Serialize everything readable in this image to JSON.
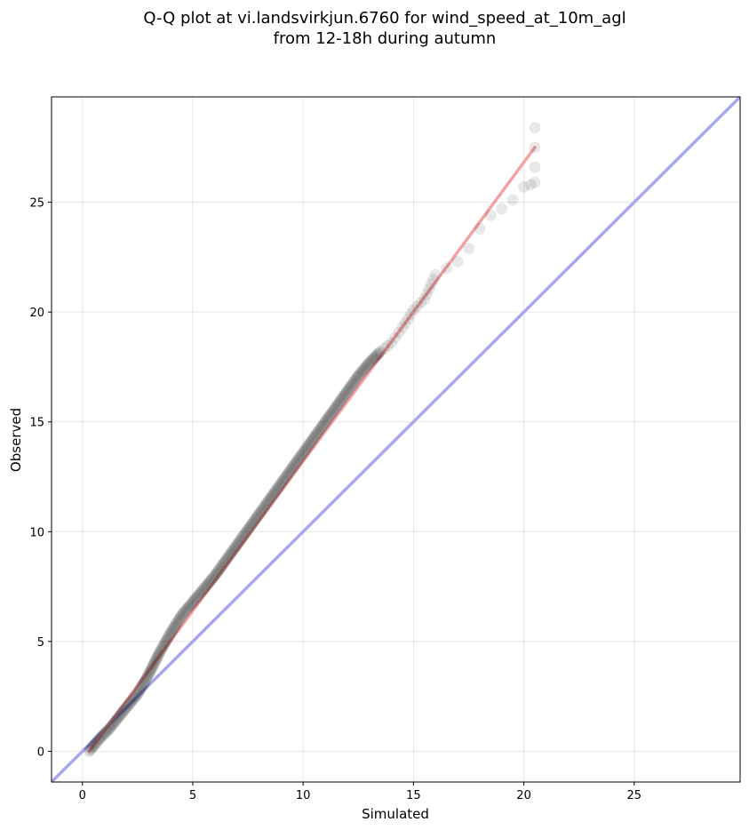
{
  "chart_data": {
    "type": "scatter",
    "title_lines": [
      "Q-Q plot at vi.landsvirkjun.6760 for wind_speed_at_10m_agl",
      "from 12-18h during autumn"
    ],
    "xlabel": "Simulated",
    "ylabel": "Observed",
    "xlim": [
      -1.4,
      29.8
    ],
    "ylim": [
      -1.4,
      29.8
    ],
    "xticks": [
      0,
      5,
      10,
      15,
      20,
      25
    ],
    "yticks": [
      0,
      5,
      10,
      15,
      20,
      25
    ],
    "xtick_labels": [
      "0",
      "5",
      "10",
      "15",
      "20",
      "25"
    ],
    "ytick_labels": [
      "0",
      "5",
      "10",
      "15",
      "20",
      "25"
    ],
    "grid": true,
    "quantile_curve": {
      "x": [
        0.3,
        0.8,
        1.2,
        1.6,
        2.0,
        2.5,
        3.0,
        3.5,
        4.0,
        4.5,
        5.0,
        5.5,
        6.0,
        6.5,
        7.0,
        7.5,
        8.0,
        8.5,
        9.0,
        9.5,
        10.0,
        10.5,
        11.0,
        11.5,
        12.0,
        12.5,
        13.0,
        13.5,
        14.0,
        14.5,
        15.0,
        15.5,
        16.0,
        16.5,
        17.0,
        17.5,
        18.0,
        18.5,
        19.0,
        19.5,
        20.0,
        20.3,
        20.5,
        20.5,
        20.5
      ],
      "y": [
        0.0,
        0.6,
        1.0,
        1.5,
        2.0,
        2.6,
        3.5,
        4.5,
        5.4,
        6.2,
        6.8,
        7.4,
        8.0,
        8.7,
        9.4,
        10.1,
        10.8,
        11.5,
        12.2,
        12.9,
        13.6,
        14.3,
        15.0,
        15.7,
        16.4,
        17.1,
        17.7,
        18.2,
        18.6,
        19.3,
        20.1,
        20.6,
        21.7,
        22.0,
        22.3,
        22.9,
        23.8,
        24.4,
        24.7,
        25.1,
        25.7,
        25.8,
        25.9,
        26.6,
        28.4
      ]
    },
    "fit_line": {
      "x": [
        0.3,
        20.5
      ],
      "y": [
        0.0,
        27.5
      ],
      "color": "#f4a3a3"
    },
    "identity_line": {
      "x": [
        -1.4,
        29.8
      ],
      "y": [
        -1.4,
        29.8
      ],
      "color": "#a8a8f2"
    },
    "point_color": "#000000"
  }
}
